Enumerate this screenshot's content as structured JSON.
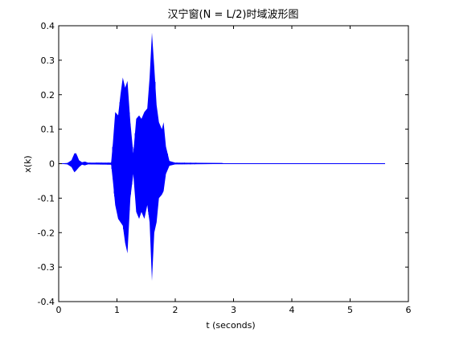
{
  "chart_data": {
    "type": "line",
    "title": "汉宁窗(N = L/2)时域波形图",
    "xlabel": "t (seconds)",
    "ylabel": "x(k)",
    "xlim": [
      0,
      6
    ],
    "ylim": [
      -0.4,
      0.4
    ],
    "x_ticks": [
      0,
      1,
      2,
      3,
      4,
      5,
      6
    ],
    "y_ticks": [
      -0.4,
      -0.3,
      -0.2,
      -0.1,
      0,
      0.1,
      0.2,
      0.3,
      0.4
    ],
    "x_tick_labels": [
      "0",
      "1",
      "2",
      "3",
      "4",
      "5",
      "6"
    ],
    "y_tick_labels": [
      "-0.4",
      "-0.3",
      "-0.2",
      "-0.1",
      "0",
      "0.1",
      "0.2",
      "0.3",
      "0.4"
    ],
    "grid": false,
    "series": [
      {
        "color": "#0000ff",
        "duration": 5.6,
        "envelope": [
          {
            "t": 0.0,
            "max": 0.0,
            "min": 0.0
          },
          {
            "t": 0.15,
            "max": 0.002,
            "min": -0.002
          },
          {
            "t": 0.22,
            "max": 0.01,
            "min": -0.01
          },
          {
            "t": 0.27,
            "max": 0.03,
            "min": -0.025
          },
          {
            "t": 0.3,
            "max": 0.03,
            "min": -0.02
          },
          {
            "t": 0.35,
            "max": 0.01,
            "min": -0.01
          },
          {
            "t": 0.4,
            "max": 0.004,
            "min": -0.003
          },
          {
            "t": 0.45,
            "max": 0.006,
            "min": -0.005
          },
          {
            "t": 0.5,
            "max": 0.003,
            "min": -0.002
          },
          {
            "t": 0.9,
            "max": 0.003,
            "min": -0.003
          },
          {
            "t": 0.93,
            "max": 0.06,
            "min": -0.05
          },
          {
            "t": 0.97,
            "max": 0.15,
            "min": -0.12
          },
          {
            "t": 1.02,
            "max": 0.14,
            "min": -0.16
          },
          {
            "t": 1.06,
            "max": 0.2,
            "min": -0.17
          },
          {
            "t": 1.1,
            "max": 0.25,
            "min": -0.18
          },
          {
            "t": 1.14,
            "max": 0.22,
            "min": -0.23
          },
          {
            "t": 1.18,
            "max": 0.24,
            "min": -0.26
          },
          {
            "t": 1.23,
            "max": 0.12,
            "min": -0.1
          },
          {
            "t": 1.28,
            "max": 0.03,
            "min": -0.03
          },
          {
            "t": 1.33,
            "max": 0.13,
            "min": -0.14
          },
          {
            "t": 1.38,
            "max": 0.14,
            "min": -0.16
          },
          {
            "t": 1.42,
            "max": 0.13,
            "min": -0.14
          },
          {
            "t": 1.47,
            "max": 0.15,
            "min": -0.16
          },
          {
            "t": 1.52,
            "max": 0.16,
            "min": -0.12
          },
          {
            "t": 1.56,
            "max": 0.25,
            "min": -0.17
          },
          {
            "t": 1.6,
            "max": 0.38,
            "min": -0.34
          },
          {
            "t": 1.64,
            "max": 0.28,
            "min": -0.2
          },
          {
            "t": 1.68,
            "max": 0.17,
            "min": -0.17
          },
          {
            "t": 1.72,
            "max": 0.12,
            "min": -0.1
          },
          {
            "t": 1.77,
            "max": 0.1,
            "min": -0.09
          },
          {
            "t": 1.8,
            "max": 0.12,
            "min": -0.08
          },
          {
            "t": 1.84,
            "max": 0.05,
            "min": -0.03
          },
          {
            "t": 1.9,
            "max": 0.008,
            "min": -0.006
          },
          {
            "t": 2.0,
            "max": 0.003,
            "min": -0.002
          },
          {
            "t": 2.8,
            "max": 0.002,
            "min": -0.001
          },
          {
            "t": 2.85,
            "max": 0.0005,
            "min": -0.0005
          },
          {
            "t": 5.6,
            "max": 0.0,
            "min": 0.0
          }
        ]
      }
    ]
  }
}
